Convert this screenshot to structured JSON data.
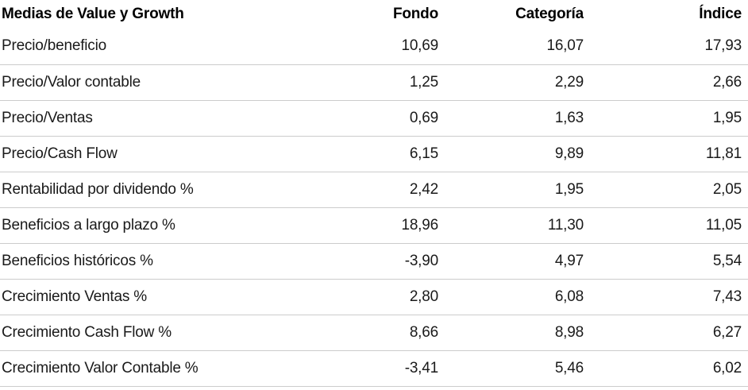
{
  "table": {
    "title": "Medias de Value y Growth",
    "columns": [
      "Fondo",
      "Categoría",
      "Índice"
    ],
    "rows": [
      {
        "label": "Precio/beneficio",
        "fondo": "10,69",
        "categoria": "16,07",
        "indice": "17,93"
      },
      {
        "label": "Precio/Valor contable",
        "fondo": "1,25",
        "categoria": "2,29",
        "indice": "2,66"
      },
      {
        "label": "Precio/Ventas",
        "fondo": "0,69",
        "categoria": "1,63",
        "indice": "1,95"
      },
      {
        "label": "Precio/Cash Flow",
        "fondo": "6,15",
        "categoria": "9,89",
        "indice": "11,81"
      },
      {
        "label": "Rentabilidad por dividendo %",
        "fondo": "2,42",
        "categoria": "1,95",
        "indice": "2,05"
      },
      {
        "label": "Beneficios a largo plazo %",
        "fondo": "18,96",
        "categoria": "11,30",
        "indice": "11,05"
      },
      {
        "label": "Beneficios históricos %",
        "fondo": "-3,90",
        "categoria": "4,97",
        "indice": "5,54"
      },
      {
        "label": "Crecimiento Ventas %",
        "fondo": "2,80",
        "categoria": "6,08",
        "indice": "7,43"
      },
      {
        "label": "Crecimiento Cash Flow %",
        "fondo": "8,66",
        "categoria": "8,98",
        "indice": "6,27"
      },
      {
        "label": "Crecimiento Valor Contable %",
        "fondo": "-3,41",
        "categoria": "5,46",
        "indice": "6,02"
      }
    ]
  },
  "colors": {
    "header_text": "#000000",
    "body_text": "#1a1a1a",
    "row_separator": "#cccccc",
    "background": "#ffffff"
  },
  "chart_data": {
    "type": "table",
    "title": "Medias de Value y Growth",
    "columns": [
      "Medias de Value y Growth",
      "Fondo",
      "Categoría",
      "Índice"
    ],
    "rows": [
      [
        "Precio/beneficio",
        10.69,
        16.07,
        17.93
      ],
      [
        "Precio/Valor contable",
        1.25,
        2.29,
        2.66
      ],
      [
        "Precio/Ventas",
        0.69,
        1.63,
        1.95
      ],
      [
        "Precio/Cash Flow",
        6.15,
        9.89,
        11.81
      ],
      [
        "Rentabilidad por dividendo %",
        2.42,
        1.95,
        2.05
      ],
      [
        "Beneficios a largo plazo %",
        18.96,
        11.3,
        11.05
      ],
      [
        "Beneficios históricos %",
        -3.9,
        4.97,
        5.54
      ],
      [
        "Crecimiento Ventas %",
        2.8,
        6.08,
        7.43
      ],
      [
        "Crecimiento Cash Flow %",
        8.66,
        8.98,
        6.27
      ],
      [
        "Crecimiento Valor Contable %",
        -3.41,
        5.46,
        6.02
      ]
    ],
    "layout": {
      "header_bold": true,
      "numeric_alignment": "right",
      "decimal_separator": ",",
      "row_separators": true,
      "separator_under_header": false
    }
  }
}
